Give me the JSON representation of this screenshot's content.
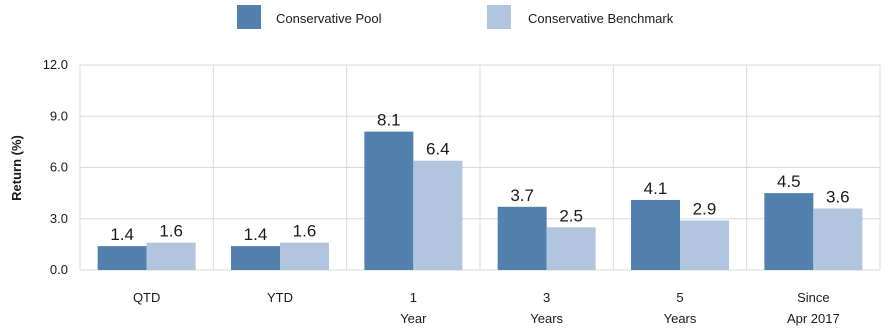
{
  "chart_data": {
    "type": "bar",
    "ylabel": "Return (%)",
    "ylim": [
      0,
      12
    ],
    "yticks": [
      "0.0",
      "3.0",
      "6.0",
      "9.0",
      "12.0"
    ],
    "grid": true,
    "legend_position": "top-center",
    "categories": [
      [
        "QTD"
      ],
      [
        "YTD"
      ],
      [
        "1",
        "Year"
      ],
      [
        "3",
        "Years"
      ],
      [
        "5",
        "Years"
      ],
      [
        "Since",
        "Apr 2017"
      ]
    ],
    "series": [
      {
        "name": "Conservative Pool",
        "color": "#5281ae",
        "values": [
          1.4,
          1.4,
          8.1,
          3.7,
          4.1,
          4.5
        ],
        "labels": [
          "1.4",
          "1.4",
          "8.1",
          "3.7",
          "4.1",
          "4.5"
        ]
      },
      {
        "name": "Conservative Benchmark",
        "color": "#b2c5df",
        "values": [
          1.6,
          1.6,
          6.4,
          2.5,
          2.9,
          3.6
        ],
        "labels": [
          "1.6",
          "1.6",
          "6.4",
          "2.5",
          "2.9",
          "3.6"
        ]
      }
    ]
  }
}
